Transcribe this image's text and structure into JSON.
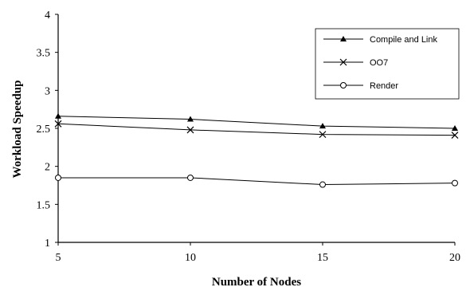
{
  "chart_data": {
    "type": "line",
    "title": "",
    "xlabel": "Number of Nodes",
    "ylabel": "Workload Speedup",
    "x": [
      5,
      10,
      15,
      20
    ],
    "x_tick_labels": [
      "5",
      "10",
      "15",
      "20"
    ],
    "y_tick_labels": [
      "1",
      "1.5",
      "2",
      "2.5",
      "3",
      "3.5",
      "4"
    ],
    "ylim": [
      1,
      4
    ],
    "xlim": [
      5,
      20
    ],
    "grid": false,
    "legend_position": "top-right",
    "series": [
      {
        "name": "Compile and Link",
        "marker": "triangle",
        "values": [
          2.66,
          2.62,
          2.53,
          2.5
        ]
      },
      {
        "name": "OO7",
        "marker": "x",
        "values": [
          2.56,
          2.48,
          2.42,
          2.41
        ]
      },
      {
        "name": "Render",
        "marker": "circle",
        "values": [
          1.85,
          1.85,
          1.76,
          1.78
        ]
      }
    ],
    "colors": {
      "line": "#000000",
      "background": "#ffffff"
    }
  }
}
